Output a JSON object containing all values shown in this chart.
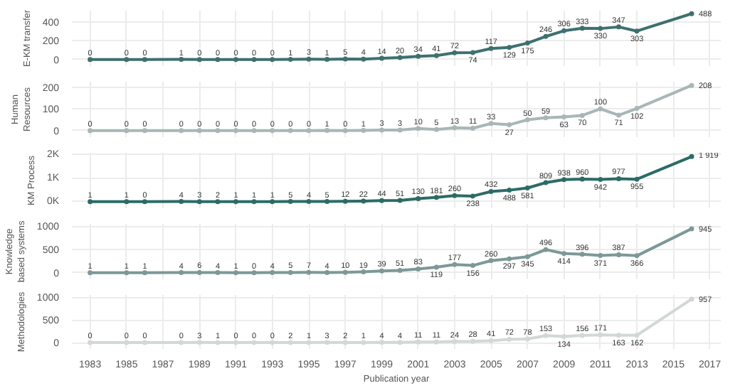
{
  "chart_data": [
    {
      "type": "line",
      "ylabel": "E-KM transfer",
      "x": [
        1983,
        1985,
        1986,
        1988,
        1989,
        1990,
        1991,
        1992,
        1993,
        1994,
        1995,
        1996,
        1997,
        1998,
        1999,
        2000,
        2001,
        2002,
        2003,
        2004,
        2005,
        2006,
        2007,
        2008,
        2009,
        2010,
        2011,
        2012,
        2013,
        2016
      ],
      "series": [
        {
          "color": "#3e7070",
          "values": [
            0,
            0,
            0,
            1,
            0,
            0,
            0,
            0,
            0,
            1,
            3,
            1,
            5,
            4,
            14,
            20,
            34,
            41,
            72,
            74,
            117,
            129,
            175,
            246,
            306,
            333,
            330,
            347,
            303,
            488
          ]
        }
      ],
      "xlim": [
        1982,
        2017.6
      ],
      "xticks": [
        1983,
        1985,
        1987,
        1989,
        1991,
        1993,
        1995,
        1997,
        1999,
        2001,
        2003,
        2005,
        2007,
        2009,
        2011,
        2013,
        2015,
        2017
      ],
      "ylim": [
        -70,
        520
      ],
      "yticks": [
        0,
        200,
        400
      ],
      "grid": true,
      "marker": "circle",
      "data_labels": true,
      "tick_labels": "y"
    },
    {
      "type": "line",
      "ylabel": "Human Resources",
      "x": [
        1983,
        1985,
        1986,
        1988,
        1989,
        1990,
        1991,
        1992,
        1993,
        1994,
        1995,
        1996,
        1997,
        1998,
        1999,
        2000,
        2001,
        2002,
        2003,
        2004,
        2005,
        2006,
        2007,
        2008,
        2009,
        2010,
        2011,
        2012,
        2013,
        2016
      ],
      "series": [
        {
          "color": "#a9b6b6",
          "values": [
            0,
            0,
            0,
            0,
            0,
            0,
            0,
            0,
            0,
            0,
            0,
            1,
            0,
            1,
            3,
            3,
            10,
            5,
            13,
            11,
            33,
            27,
            50,
            59,
            63,
            70,
            100,
            71,
            102,
            208
          ]
        }
      ],
      "xlim": [
        1982,
        2017.6
      ],
      "xticks": [
        1983,
        1985,
        1987,
        1989,
        1991,
        1993,
        1995,
        1997,
        1999,
        2001,
        2003,
        2005,
        2007,
        2009,
        2011,
        2013,
        2015,
        2017
      ],
      "ylim": [
        -30,
        225
      ],
      "yticks": [
        0,
        100,
        200
      ],
      "grid": true,
      "marker": "circle",
      "data_labels": true,
      "tick_labels": "y"
    },
    {
      "type": "line",
      "ylabel": "KM Process",
      "x": [
        1983,
        1985,
        1986,
        1988,
        1989,
        1990,
        1991,
        1992,
        1993,
        1994,
        1995,
        1996,
        1997,
        1998,
        1999,
        2000,
        2001,
        2002,
        2003,
        2004,
        2005,
        2006,
        2007,
        2008,
        2009,
        2010,
        2011,
        2012,
        2013,
        2016
      ],
      "series": [
        {
          "color": "#2c6b67",
          "values": [
            1,
            1,
            0,
            4,
            3,
            2,
            1,
            1,
            1,
            5,
            4,
            5,
            12,
            22,
            44,
            51,
            130,
            181,
            260,
            238,
            432,
            488,
            581,
            809,
            938,
            960,
            942,
            977,
            955,
            1919
          ],
          "value_labels": [
            "1",
            "1",
            "0",
            "4",
            "3",
            "2",
            "1",
            "1",
            "1",
            "5",
            "4",
            "5",
            "12",
            "22",
            "44",
            "51",
            "130",
            "181",
            "260",
            "238",
            "432",
            "488",
            "581",
            "809",
            "938",
            "960",
            "942",
            "977",
            "955",
            "1 919"
          ]
        }
      ],
      "xlim": [
        1982,
        2017.6
      ],
      "xticks": [
        1983,
        1985,
        1987,
        1989,
        1991,
        1993,
        1995,
        1997,
        1999,
        2001,
        2003,
        2005,
        2007,
        2009,
        2011,
        2013,
        2015,
        2017
      ],
      "ylim": [
        -280,
        2080
      ],
      "yticks": [
        {
          "value": 0,
          "label": "0K"
        },
        {
          "value": 1000,
          "label": "1K"
        },
        {
          "value": 2000,
          "label": "2K"
        }
      ],
      "grid": true,
      "marker": "circle",
      "tick_labels": "y"
    },
    {
      "type": "line",
      "ylabel": "Knowledge based systems",
      "x": [
        1983,
        1985,
        1986,
        1988,
        1989,
        1990,
        1991,
        1992,
        1993,
        1994,
        1995,
        1996,
        1997,
        1998,
        1999,
        2000,
        2001,
        2002,
        2003,
        2004,
        2005,
        2006,
        2007,
        2008,
        2009,
        2010,
        2011,
        2012,
        2013,
        2016
      ],
      "series": [
        {
          "color": "#7d9898",
          "values": [
            1,
            1,
            1,
            4,
            6,
            4,
            1,
            0,
            4,
            5,
            7,
            4,
            10,
            19,
            39,
            51,
            83,
            119,
            177,
            156,
            260,
            297,
            345,
            496,
            414,
            396,
            371,
            387,
            366,
            945
          ]
        }
      ],
      "xlim": [
        1982,
        2017.6
      ],
      "xticks": [
        1983,
        1985,
        1987,
        1989,
        1991,
        1993,
        1995,
        1997,
        1999,
        2001,
        2003,
        2005,
        2007,
        2009,
        2011,
        2013,
        2015,
        2017
      ],
      "ylim": [
        -140,
        1050
      ],
      "yticks": [
        0,
        500,
        1000
      ],
      "grid": true,
      "marker": "circle",
      "data_labels": true,
      "tick_labels": "y"
    },
    {
      "type": "line",
      "ylabel": "Methodologies",
      "xlabel": "Publication year",
      "x": [
        1983,
        1985,
        1986,
        1988,
        1989,
        1990,
        1991,
        1992,
        1993,
        1994,
        1995,
        1996,
        1997,
        1998,
        1999,
        2000,
        2001,
        2002,
        2003,
        2004,
        2005,
        2006,
        2007,
        2008,
        2009,
        2010,
        2011,
        2012,
        2013,
        2016
      ],
      "series": [
        {
          "color": "#d2d7d7",
          "values": [
            0,
            0,
            0,
            0,
            3,
            1,
            0,
            0,
            0,
            2,
            1,
            3,
            2,
            1,
            4,
            4,
            11,
            11,
            24,
            28,
            41,
            72,
            78,
            153,
            134,
            156,
            171,
            163,
            162,
            957
          ]
        }
      ],
      "xlim": [
        1982,
        2017.6
      ],
      "xticks": [
        1983,
        1985,
        1987,
        1989,
        1991,
        1993,
        1995,
        1997,
        1999,
        2001,
        2003,
        2005,
        2007,
        2009,
        2011,
        2013,
        2015,
        2017
      ],
      "ylim": [
        -140,
        1050
      ],
      "yticks": [
        0,
        500,
        1000
      ],
      "grid": true,
      "marker": "circle",
      "data_labels": true
    }
  ]
}
